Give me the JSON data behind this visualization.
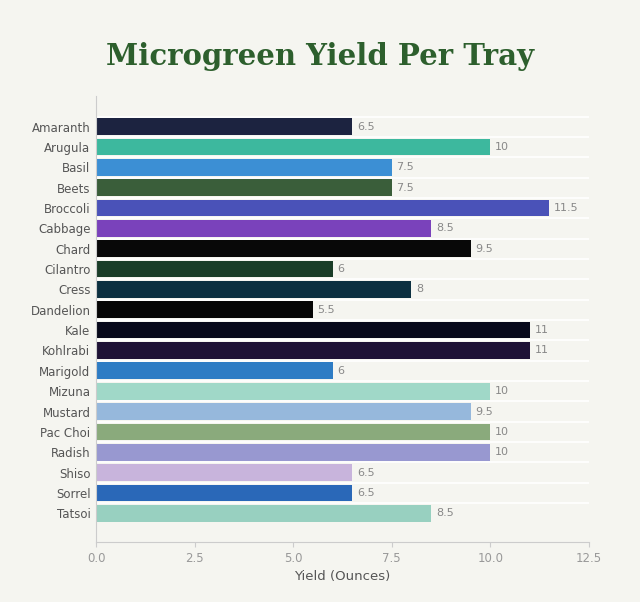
{
  "title": "Microgreen Yield Per Tray",
  "xlabel": "Yield (Ounces)",
  "categories": [
    "Amaranth",
    "Arugula",
    "Basil",
    "Beets",
    "Broccoli",
    "Cabbage",
    "Chard",
    "Cilantro",
    "Cress",
    "Dandelion",
    "Kale",
    "Kohlrabi",
    "Marigold",
    "Mizuna",
    "Mustard",
    "Pac Choi",
    "Radish",
    "Shiso",
    "Sorrel",
    "Tatsoi"
  ],
  "values": [
    6.5,
    10,
    7.5,
    7.5,
    11.5,
    8.5,
    9.5,
    6,
    8,
    5.5,
    11,
    11,
    6,
    10,
    9.5,
    10,
    10,
    6.5,
    6.5,
    8.5
  ],
  "colors": [
    "#1c2340",
    "#3db89e",
    "#3c8fd4",
    "#3a5e3a",
    "#4a52b8",
    "#7a42bb",
    "#080808",
    "#1a3d28",
    "#0c3040",
    "#060606",
    "#07091a",
    "#1e1235",
    "#2e7cc4",
    "#a0d8c8",
    "#96b8dc",
    "#8aaa7c",
    "#9898d0",
    "#c8b4dc",
    "#2a68b8",
    "#98d0c0"
  ],
  "xlim": [
    0,
    12.5
  ],
  "bg_color": "#f5f5f0",
  "title_color": "#2d5f2d",
  "label_color": "#555555",
  "value_color": "#888888",
  "tick_label_color": "#999999",
  "spine_color": "#cccccc"
}
